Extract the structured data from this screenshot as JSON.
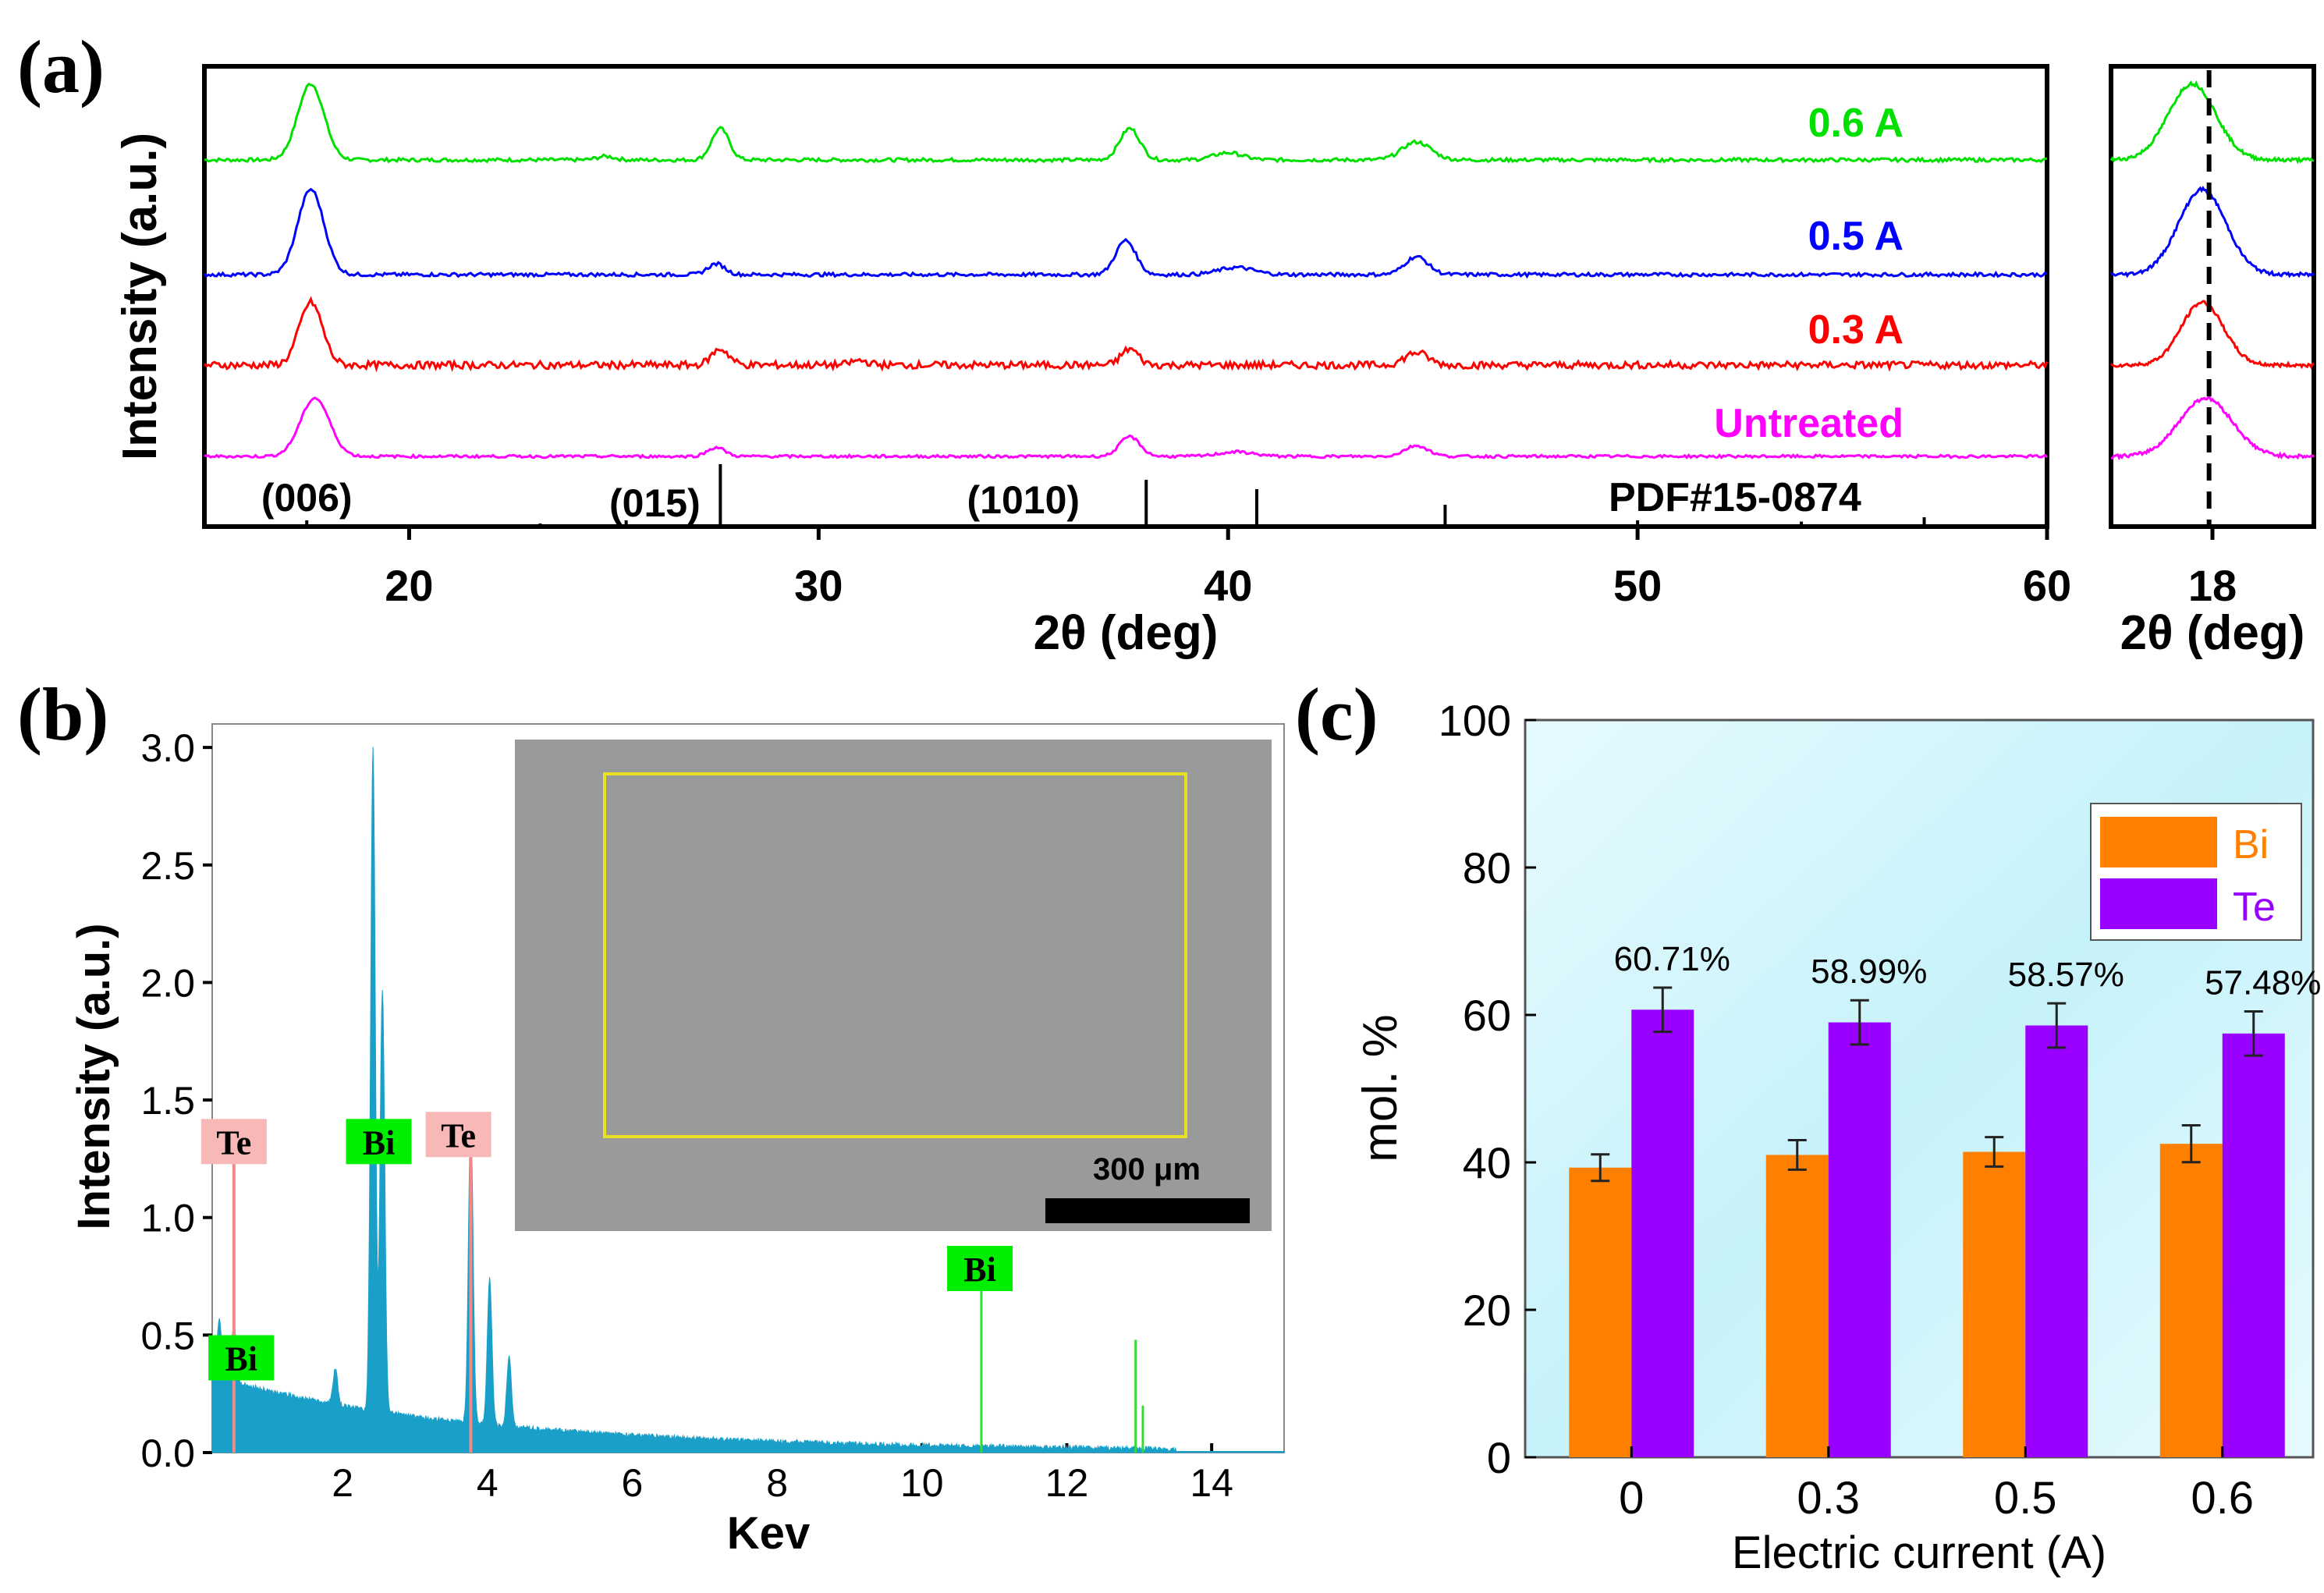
{
  "colors": {
    "untreated": "#ff00ff",
    "a03": "#ff0000",
    "a05": "#0000ff",
    "a06": "#00e000",
    "eds_fill": "#1aa0c8",
    "te_label_bg": "#f8b8b8",
    "bi_label_bg": "#00ee00",
    "bar_bi": "#ff8000",
    "bar_te": "#9900ff",
    "panel_c_bg": "#dff3f8",
    "sem_box": "#e8e020"
  },
  "chart_data": [
    {
      "id": "a_main",
      "type": "line",
      "panel_label": "(a)",
      "xlabel": "2θ (deg)",
      "ylabel": "Intensity (a.u.)",
      "xlim": [
        15,
        60
      ],
      "xticks": [
        20,
        30,
        40,
        50,
        60
      ],
      "series": [
        {
          "name": "0.6 A",
          "offset": 3.0,
          "baseline_noise": 0.02,
          "peaks": [
            {
              "x": 17.6,
              "h": 0.85,
              "w": 0.45
            },
            {
              "x": 27.6,
              "h": 0.35,
              "w": 0.3
            },
            {
              "x": 37.6,
              "h": 0.35,
              "w": 0.35
            },
            {
              "x": 40.0,
              "h": 0.08,
              "w": 0.5
            },
            {
              "x": 44.6,
              "h": 0.2,
              "w": 0.5
            },
            {
              "x": 24.8,
              "h": 0.04,
              "w": 0.3
            }
          ]
        },
        {
          "name": "0.5 A",
          "offset": 2.0,
          "baseline_noise": 0.02,
          "peaks": [
            {
              "x": 17.6,
              "h": 0.95,
              "w": 0.45
            },
            {
              "x": 27.5,
              "h": 0.12,
              "w": 0.3
            },
            {
              "x": 37.5,
              "h": 0.38,
              "w": 0.35
            },
            {
              "x": 40.2,
              "h": 0.08,
              "w": 0.6
            },
            {
              "x": 44.6,
              "h": 0.2,
              "w": 0.4
            }
          ]
        },
        {
          "name": "0.3 A",
          "offset": 1.1,
          "baseline_noise": 0.04,
          "peaks": [
            {
              "x": 17.6,
              "h": 0.7,
              "w": 0.4
            },
            {
              "x": 27.6,
              "h": 0.18,
              "w": 0.3
            },
            {
              "x": 37.6,
              "h": 0.18,
              "w": 0.3
            },
            {
              "x": 44.6,
              "h": 0.14,
              "w": 0.4
            },
            {
              "x": 31.0,
              "h": 0.05,
              "w": 0.3
            }
          ]
        },
        {
          "name": "Untreated",
          "offset": 0.0,
          "baseline_noise": 0.015,
          "peaks": [
            {
              "x": 17.7,
              "h": 0.65,
              "w": 0.5
            },
            {
              "x": 27.5,
              "h": 0.1,
              "w": 0.3
            },
            {
              "x": 37.6,
              "h": 0.22,
              "w": 0.35
            },
            {
              "x": 40.2,
              "h": 0.05,
              "w": 0.6
            },
            {
              "x": 44.6,
              "h": 0.12,
              "w": 0.4
            }
          ]
        }
      ],
      "reference": {
        "label": "PDF#15-0874",
        "lines": [
          {
            "x": 17.5,
            "h": 0.1
          },
          {
            "x": 23.2,
            "h": 0.05
          },
          {
            "x": 25.3,
            "h": 0.1
          },
          {
            "x": 27.6,
            "h": 1.0
          },
          {
            "x": 38.0,
            "h": 0.75
          },
          {
            "x": 40.7,
            "h": 0.6
          },
          {
            "x": 45.3,
            "h": 0.35
          },
          {
            "x": 50.0,
            "h": 0.1
          },
          {
            "x": 54.0,
            "h": 0.08
          },
          {
            "x": 57.0,
            "h": 0.15
          }
        ],
        "peak_labels": [
          {
            "text": "(006)",
            "x": 17.5
          },
          {
            "text": "(015)",
            "x": 26.0
          },
          {
            "text": "(1010)",
            "x": 35.0
          }
        ]
      }
    },
    {
      "id": "a_zoom",
      "type": "line",
      "xlabel": "2θ (deg)",
      "xlim": [
        16.5,
        19.5
      ],
      "xticks": [
        18
      ],
      "dashed_line_x": 17.95,
      "series_peak_x": [
        17.7,
        17.85,
        17.85,
        17.9
      ]
    },
    {
      "id": "b",
      "type": "area",
      "panel_label": "(b)",
      "xlabel": "Kev",
      "ylabel": "Intensity (a.u.)",
      "xlim": [
        0.2,
        15
      ],
      "ylim": [
        0,
        3.1
      ],
      "xticks": [
        2,
        4,
        6,
        8,
        10,
        12,
        14
      ],
      "yticks": [
        0.0,
        0.5,
        1.0,
        1.5,
        2.0,
        2.5,
        3.0
      ],
      "peaks": [
        {
          "x": 0.3,
          "h": 0.25
        },
        {
          "x": 0.5,
          "h": 0.25
        },
        {
          "x": 1.9,
          "h": 0.15
        },
        {
          "x": 2.42,
          "h": 2.82
        },
        {
          "x": 2.55,
          "h": 1.8
        },
        {
          "x": 3.77,
          "h": 1.3
        },
        {
          "x": 4.03,
          "h": 0.62
        },
        {
          "x": 4.3,
          "h": 0.3
        }
      ],
      "element_labels": [
        {
          "text": "Te",
          "x": 0.5,
          "y": 1.32,
          "element": "Te"
        },
        {
          "text": "Bi",
          "x": 2.5,
          "y": 1.32,
          "element": "Bi"
        },
        {
          "text": "Te",
          "x": 3.6,
          "y": 1.35,
          "element": "Te"
        },
        {
          "text": "Bi",
          "x": 0.6,
          "y": 0.4,
          "element": "Bi"
        },
        {
          "text": "Bi",
          "x": 10.8,
          "y": 0.78,
          "element": "Bi"
        }
      ],
      "green_lines": [
        {
          "x": 10.82,
          "h": 0.7
        },
        {
          "x": 12.95,
          "h": 0.48
        },
        {
          "x": 13.05,
          "h": 0.2
        }
      ],
      "inset_scale_bar": "300 μm"
    },
    {
      "id": "c",
      "type": "bar",
      "panel_label": "(c)",
      "xlabel": "Electric current (A)",
      "ylabel": "mol. %",
      "ylim": [
        0,
        100
      ],
      "yticks": [
        0,
        20,
        40,
        60,
        80,
        100
      ],
      "categories": [
        "0",
        "0.3",
        "0.5",
        "0.6"
      ],
      "series": [
        {
          "name": "Bi",
          "values": [
            39.29,
            41.01,
            41.43,
            42.52
          ],
          "errors": [
            1.8,
            2.0,
            2.0,
            2.5
          ]
        },
        {
          "name": "Te",
          "values": [
            60.71,
            58.99,
            58.57,
            57.48
          ],
          "errors": [
            3.0,
            3.0,
            3.0,
            3.0
          ]
        }
      ],
      "value_labels": [
        "60.71%",
        "58.99%",
        "58.57%",
        "57.48%"
      ]
    }
  ]
}
